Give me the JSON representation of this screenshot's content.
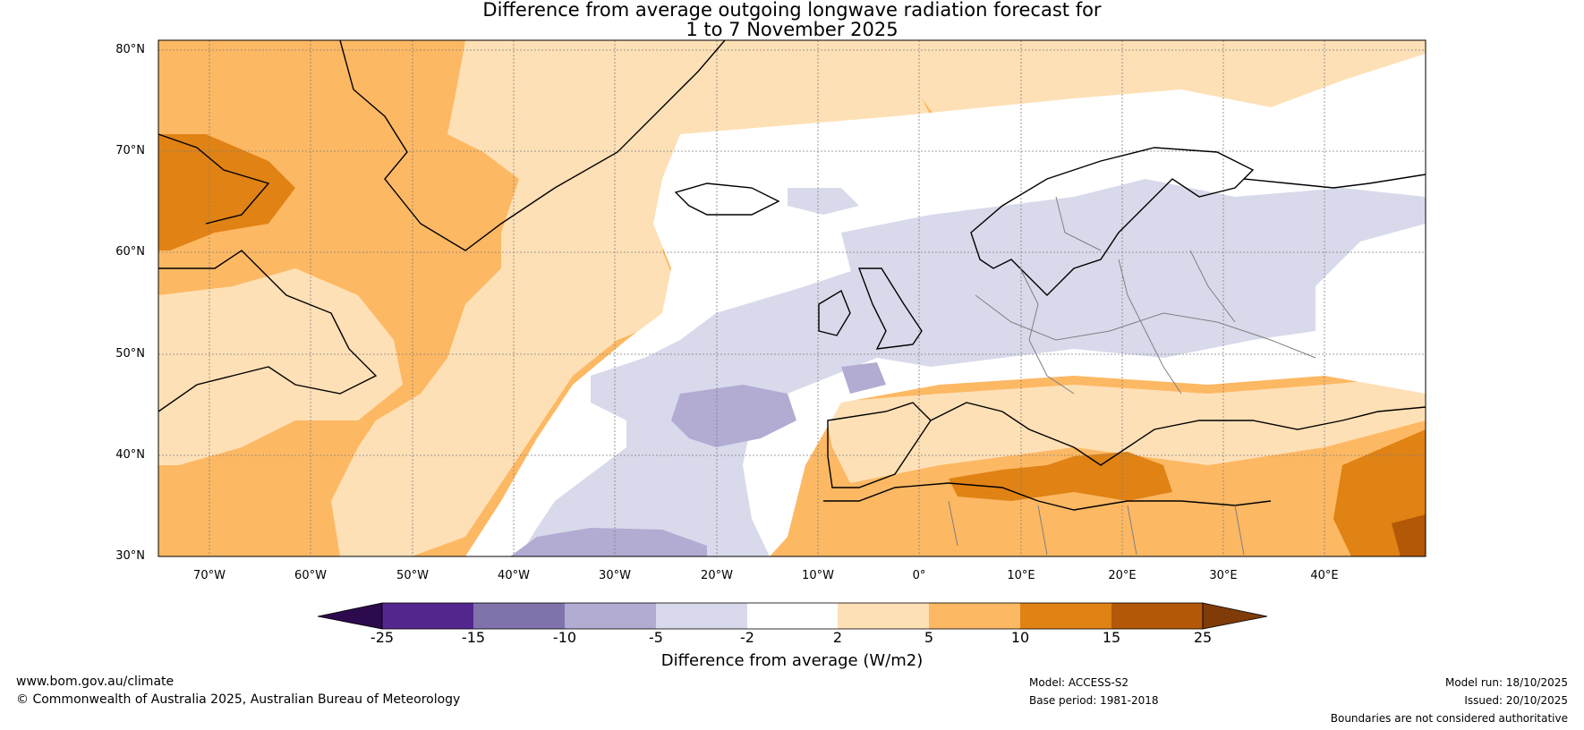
{
  "title": {
    "line1": "Difference from average outgoing longwave radiation forecast for",
    "line2": "1 to 7 November 2025"
  },
  "map": {
    "lat_labels": [
      "80°N",
      "70°N",
      "60°N",
      "50°N",
      "40°N",
      "30°N"
    ],
    "lon_labels": [
      "70°W",
      "60°W",
      "50°W",
      "40°W",
      "30°W",
      "20°W",
      "10°W",
      "0°",
      "10°E",
      "20°E",
      "30°E",
      "40°E"
    ],
    "lat_range": [
      30,
      81
    ],
    "lon_range": [
      -75,
      50
    ]
  },
  "colorbar": {
    "title": "Difference from average (W/m2)",
    "ticks": [
      "-25",
      "-15",
      "-10",
      "-5",
      "-2",
      "2",
      "5",
      "10",
      "15",
      "25"
    ],
    "colors": {
      "under": "#2d0a4e",
      "c1": "#54278f",
      "c2": "#8073ac",
      "c3": "#b2abd2",
      "c4": "#d8daeb",
      "c5": "#ffffff",
      "c6": "#fee0b6",
      "c7": "#fdb863",
      "c8": "#e08214",
      "c9": "#b35806",
      "over": "#7f3b08"
    }
  },
  "footer": {
    "website": "www.bom.gov.au/climate",
    "copyright": "© Commonwealth of Australia 2025, Australian Bureau of Meteorology",
    "model": "Model: ACCESS-S2",
    "base_period": "Base period: 1981-2018",
    "model_run": "Model run: 18/10/2025",
    "issued": "Issued: 20/10/2025",
    "boundaries": "Boundaries are not considered authoritative"
  }
}
